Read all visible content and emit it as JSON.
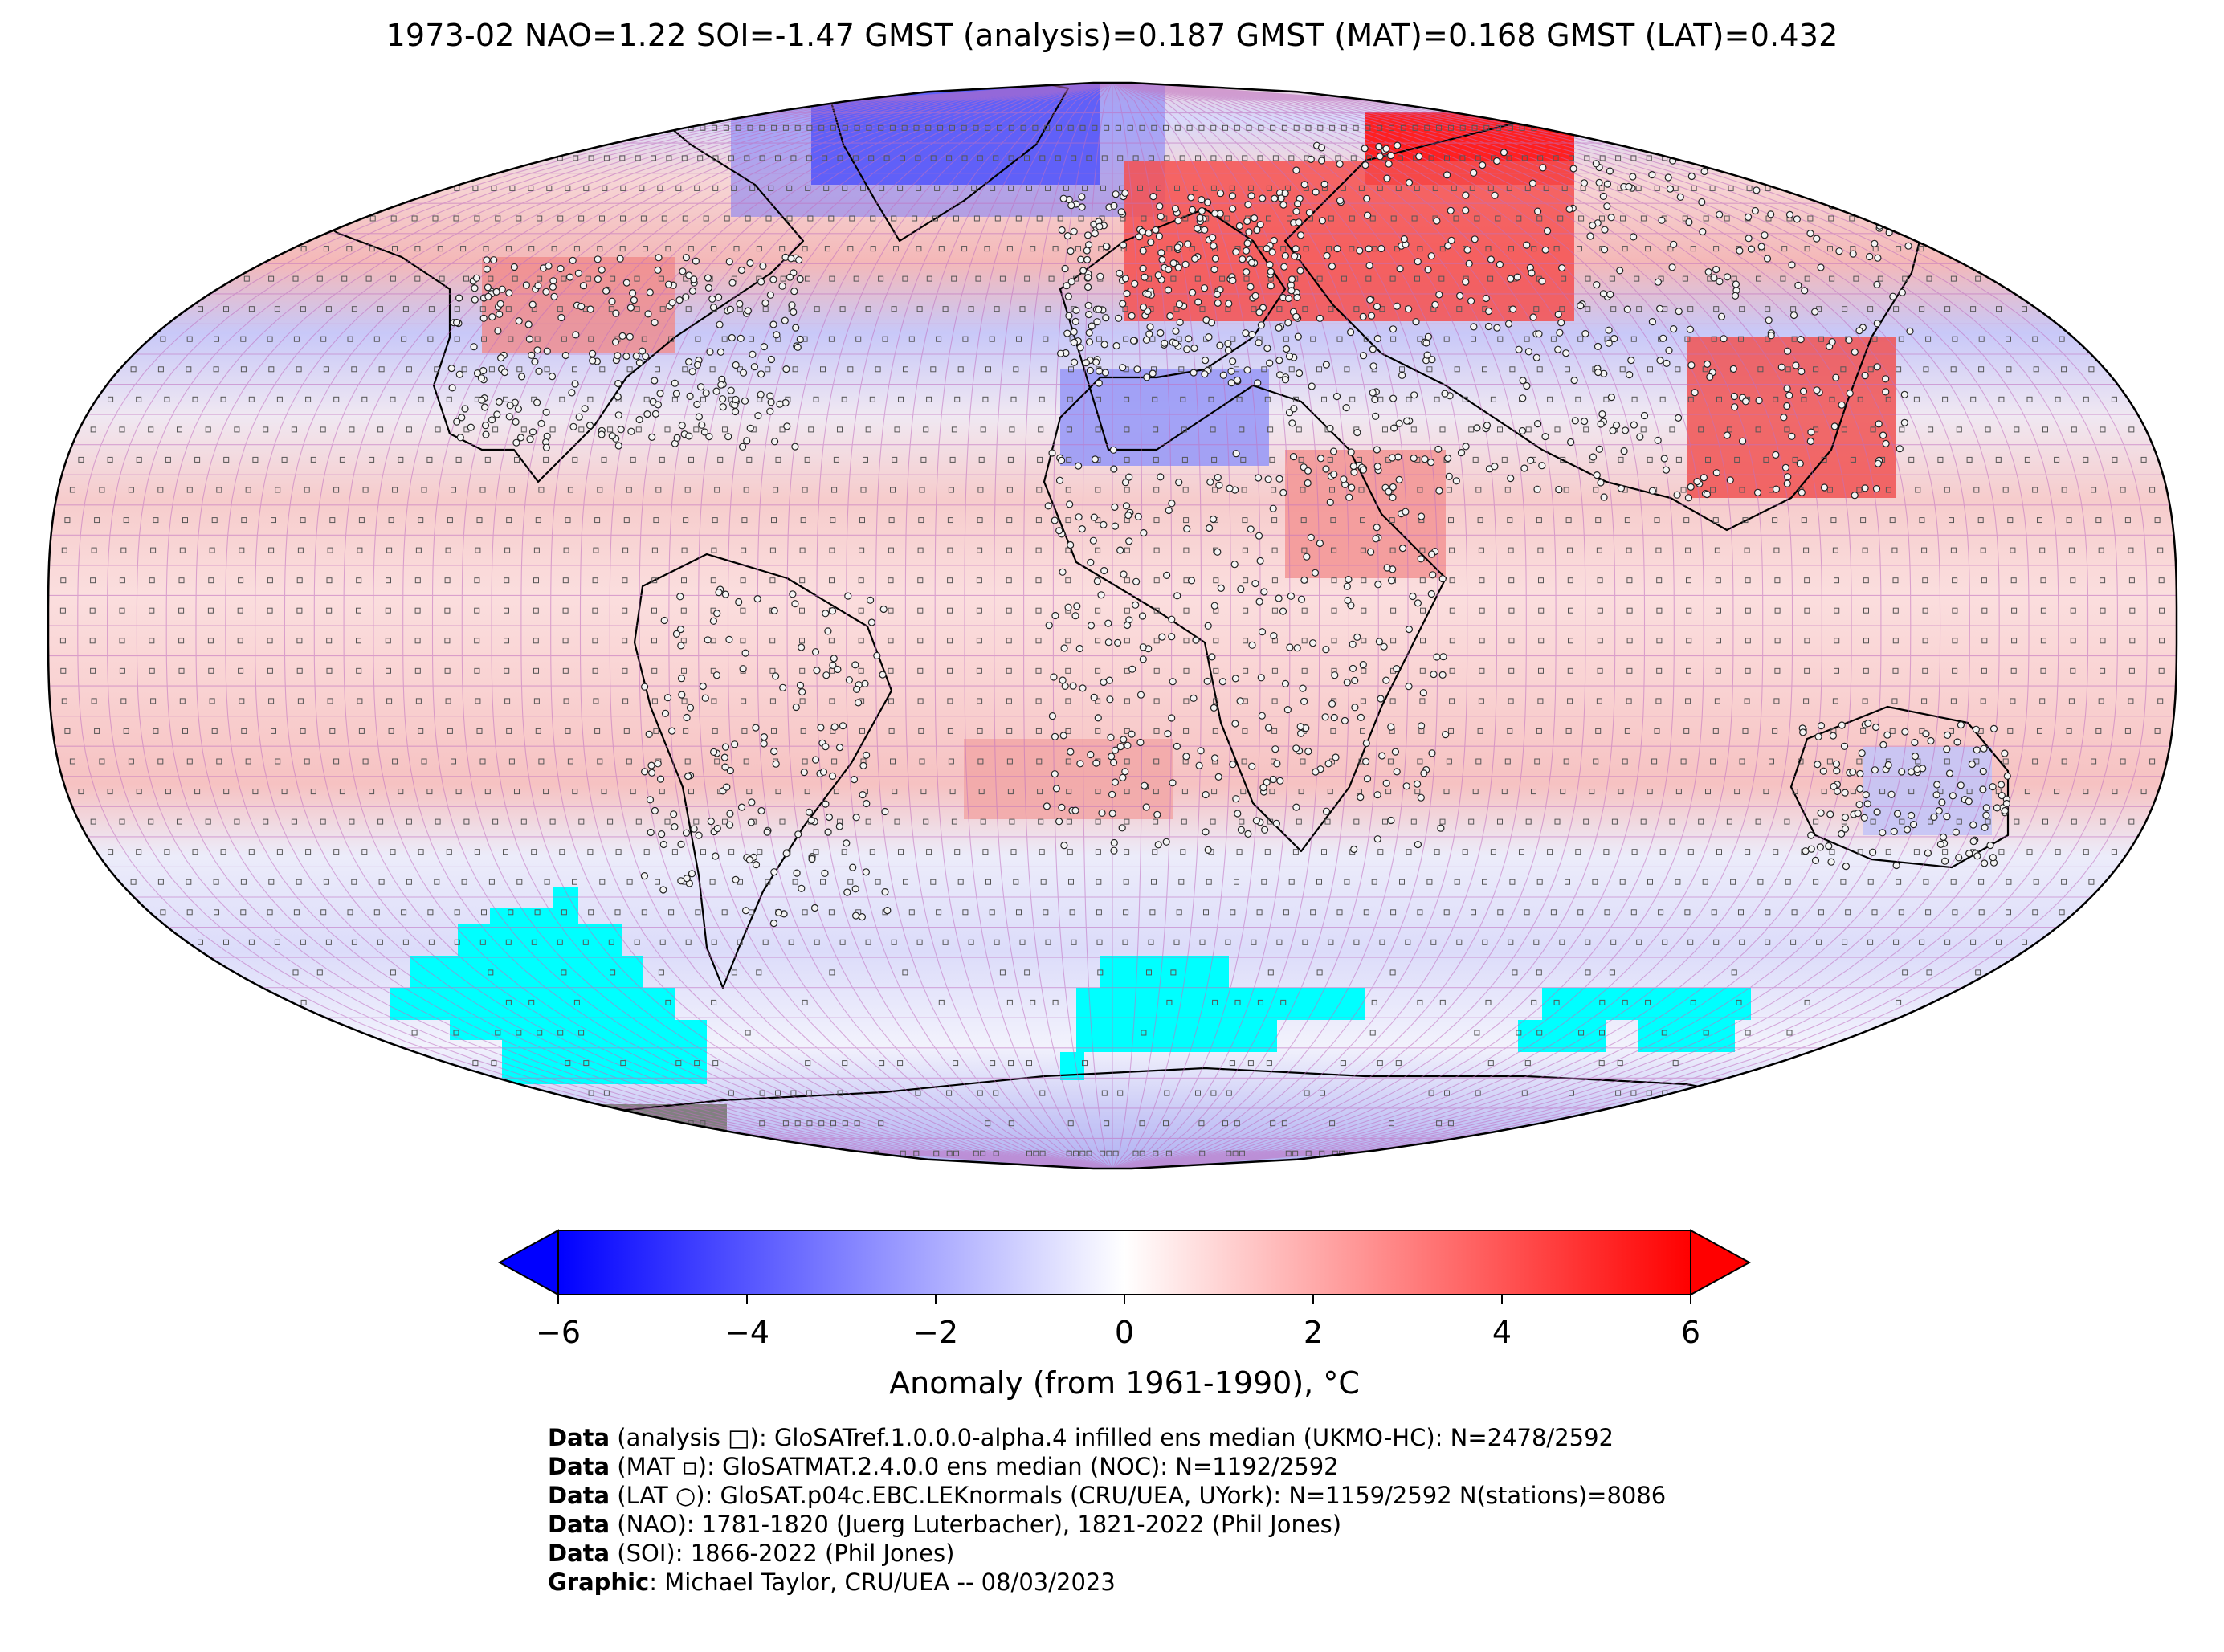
{
  "title": "1973-02 NAO=1.22 SOI=-1.47 GMST (analysis)=0.187 GMST (MAT)=0.168 GMST (LAT)=0.432",
  "map": {
    "projection": "Robinson",
    "palette": {
      "cold": "#0000ff",
      "neutral": "#ffffff",
      "warm": "#ff0000",
      "sea_ice": "#00ffff",
      "land_ice": "#808080",
      "gridlines": "#c070c0"
    }
  },
  "colorbar": {
    "label": "Anomaly (from 1961-1990), °C",
    "ticks": [
      "−6",
      "−4",
      "−2",
      "0",
      "2",
      "4",
      "6"
    ],
    "range": [
      -6,
      6
    ],
    "extend": "both"
  },
  "credits": [
    {
      "key": "Data",
      "rest": " (analysis □): GloSATref.1.0.0.0-alpha.4 infilled ens median (UKMO-HC): N=2478/2592"
    },
    {
      "key": "Data",
      "rest": " (MAT ▫): GloSATMAT.2.4.0.0 ens median (NOC): N=1192/2592"
    },
    {
      "key": "Data",
      "rest": " (LAT ○): GloSAT.p04c.EBC.LEKnormals (CRU/UEA, UYork): N=1159/2592 N(stations)=8086"
    },
    {
      "key": "Data",
      "rest": " (NAO): 1781-1820 (Juerg Luterbacher), 1821-2022 (Phil Jones)"
    },
    {
      "key": "Data",
      "rest": " (SOI): 1866-2022 (Phil Jones)"
    },
    {
      "key": "Graphic",
      "rest": ": Michael Taylor, CRU/UEA -- 08/03/2023"
    }
  ]
}
